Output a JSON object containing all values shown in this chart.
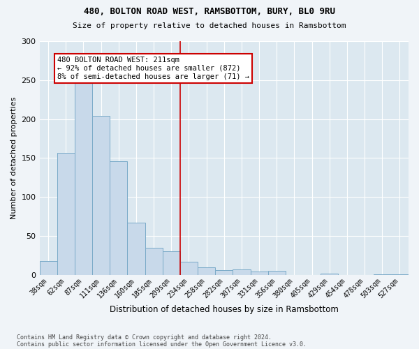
{
  "title1": "480, BOLTON ROAD WEST, RAMSBOTTOM, BURY, BL0 9RU",
  "title2": "Size of property relative to detached houses in Ramsbottom",
  "xlabel": "Distribution of detached houses by size in Ramsbottom",
  "ylabel": "Number of detached properties",
  "footer1": "Contains HM Land Registry data © Crown copyright and database right 2024.",
  "footer2": "Contains public sector information licensed under the Open Government Licence v3.0.",
  "annotation_line1": "480 BOLTON ROAD WEST: 211sqm",
  "annotation_line2": "← 92% of detached houses are smaller (872)",
  "annotation_line3": "8% of semi-detached houses are larger (71) →",
  "bar_color": "#c8d9ea",
  "bar_edge_color": "#7aaac8",
  "vline_color": "#cc0000",
  "annotation_box_edgecolor": "#cc0000",
  "bg_color": "#dce8f0",
  "fig_bg": "#f0f4f8",
  "categories": [
    "38sqm",
    "62sqm",
    "87sqm",
    "111sqm",
    "136sqm",
    "160sqm",
    "185sqm",
    "209sqm",
    "234sqm",
    "258sqm",
    "282sqm",
    "307sqm",
    "331sqm",
    "356sqm",
    "380sqm",
    "405sqm",
    "429sqm",
    "454sqm",
    "478sqm",
    "503sqm",
    "527sqm"
  ],
  "values": [
    18,
    157,
    251,
    204,
    146,
    67,
    35,
    30,
    17,
    10,
    6,
    7,
    4,
    5,
    0,
    0,
    2,
    0,
    0,
    1,
    1
  ],
  "ylim": [
    0,
    300
  ],
  "yticks": [
    0,
    50,
    100,
    150,
    200,
    250,
    300
  ],
  "vline_x": 7.5,
  "figsize": [
    6.0,
    5.0
  ],
  "dpi": 100
}
